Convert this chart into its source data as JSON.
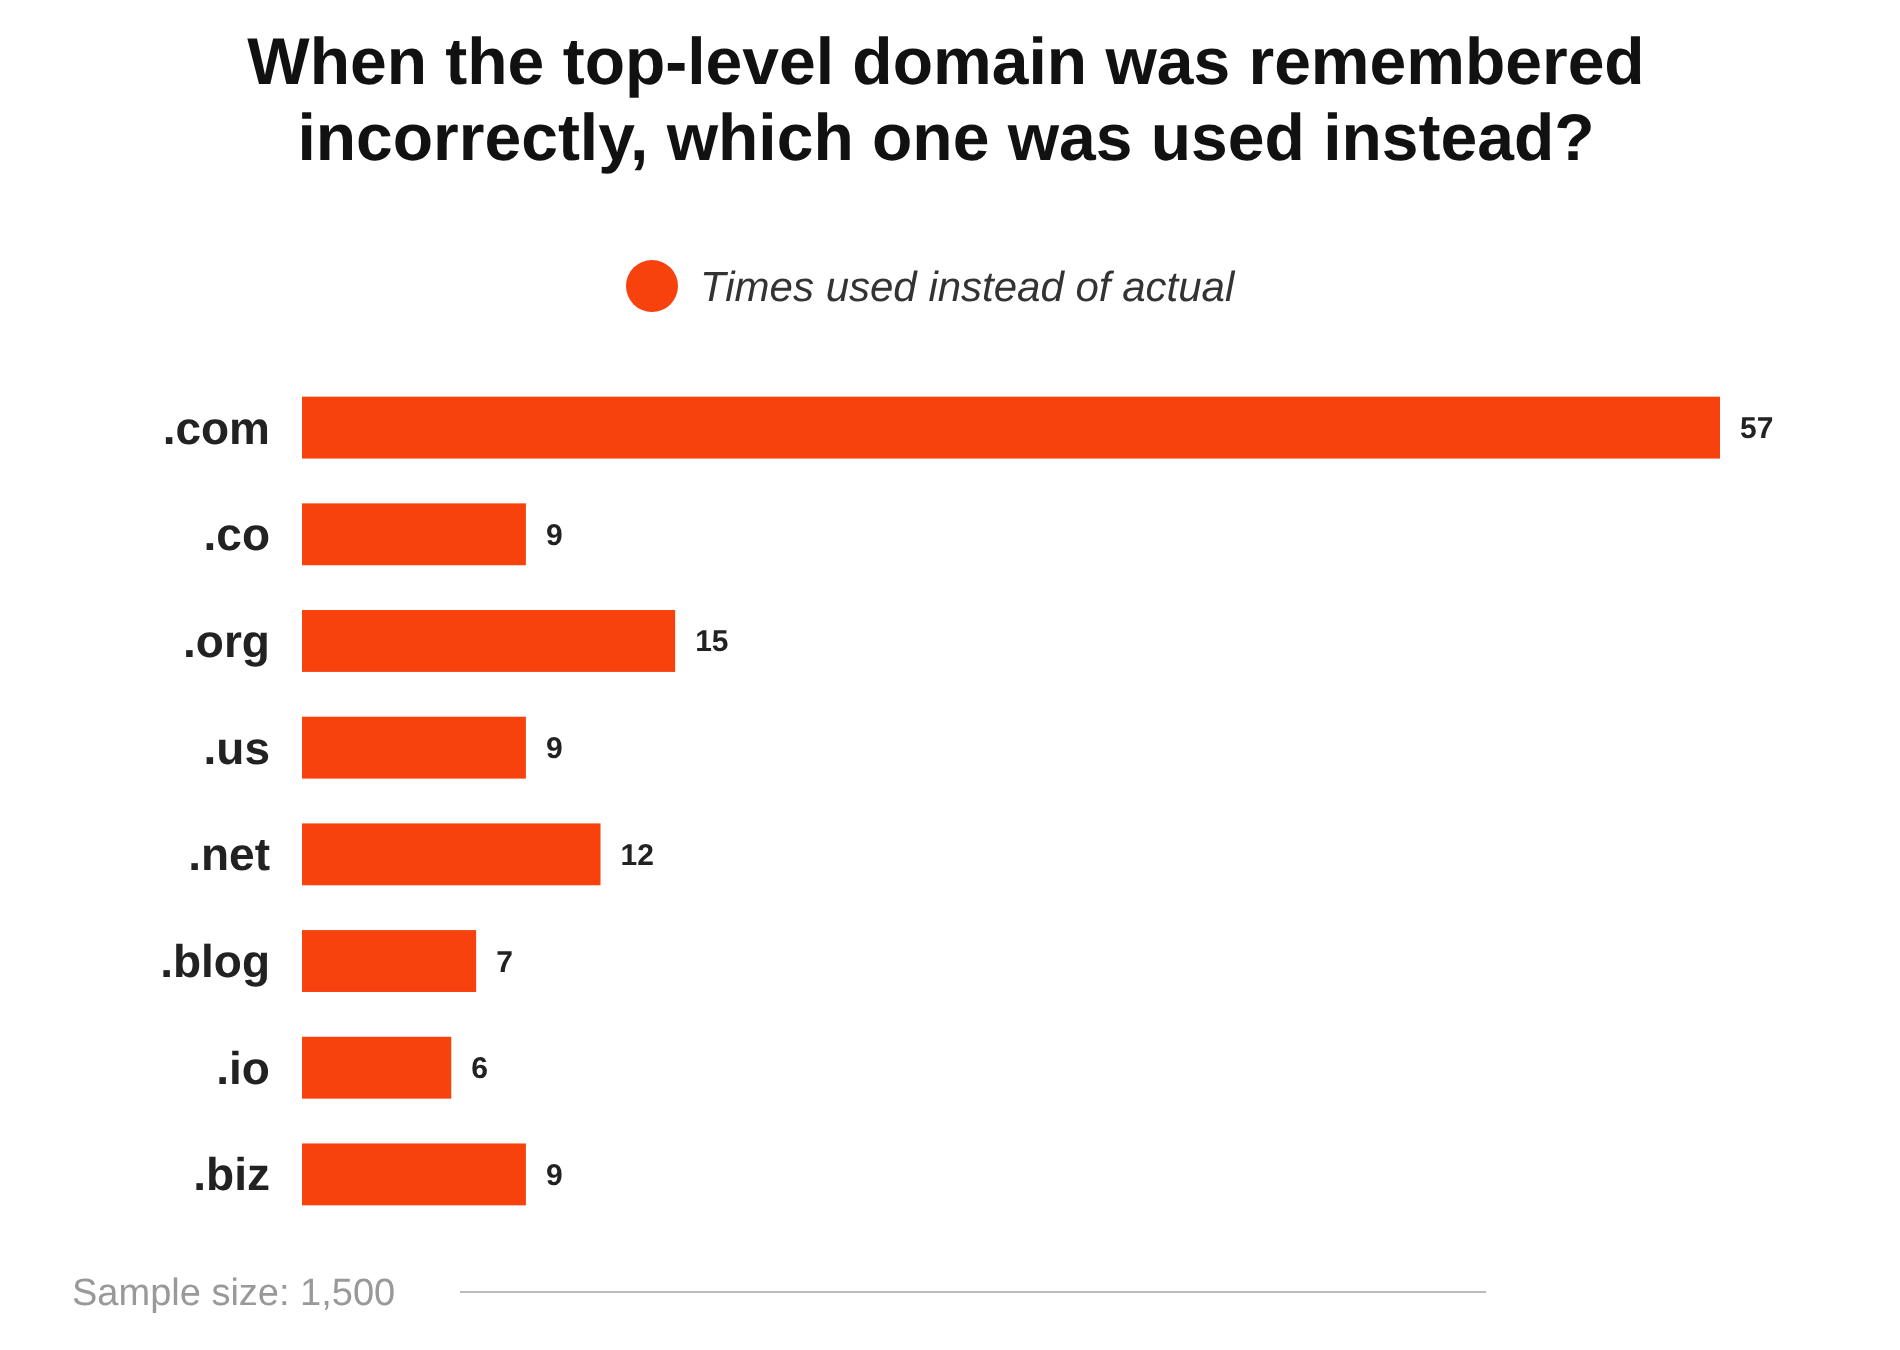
{
  "chart_data": {
    "type": "bar",
    "orientation": "horizontal",
    "title": "When the top-level domain was remembered incorrectly, which one was used instead?",
    "categories": [
      ".com",
      ".co",
      ".org",
      ".us",
      ".net",
      ".blog",
      ".io",
      ".biz"
    ],
    "series": [
      {
        "name": "Times used instead of actual",
        "color": "#f8420e",
        "values": [
          57,
          9,
          15,
          9,
          12,
          7,
          6,
          9
        ]
      }
    ],
    "data_labels": true,
    "legend": "top",
    "grid": false,
    "annotations": [
      "Sample size: 1,500"
    ]
  }
}
